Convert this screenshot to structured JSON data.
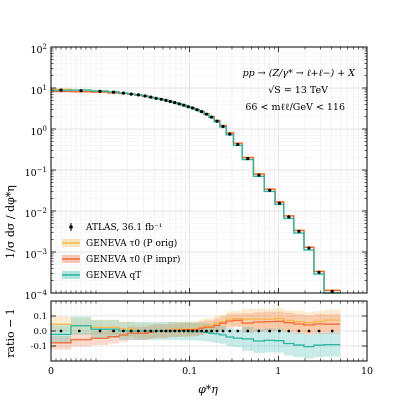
{
  "chart_data": [
    {
      "type": "line",
      "panel": "main",
      "ylabel": "1/σ dσ / dφ*η",
      "yscale": "log",
      "ylim": [
        0.0001,
        100
      ],
      "xscale": "symlog",
      "xlim": [
        0,
        10
      ],
      "grid": true,
      "legend": "lower-left",
      "y_tick_labels": [
        "10^-4",
        "10^-3",
        "10^-2",
        "10^-1",
        "10^0",
        "10^1",
        "10^2"
      ],
      "annotations": [
        "pp → (Z/γ* → ℓ+ℓ−) + X",
        "√S = 13 TeV",
        "66 < mℓℓ/GeV < 116"
      ],
      "bin_edges": [
        0,
        0.004,
        0.008,
        0.012,
        0.016,
        0.02,
        0.024,
        0.029,
        0.034,
        0.039,
        0.045,
        0.051,
        0.057,
        0.064,
        0.072,
        0.081,
        0.091,
        0.102,
        0.114,
        0.128,
        0.145,
        0.165,
        0.189,
        0.219,
        0.258,
        0.312,
        0.391,
        0.524,
        0.695,
        0.918,
        1.153,
        1.496,
        1.947,
        2.522,
        3.277,
        5,
        10
      ],
      "series": [
        {
          "name": "ATLAS, 36.1 fb⁻¹",
          "style": "points",
          "color": "#000000",
          "values": [
            8.9,
            8.6,
            8.3,
            7.9,
            7.5,
            7.1,
            6.8,
            6.4,
            6.0,
            5.6,
            5.3,
            5.0,
            4.7,
            4.4,
            4.1,
            3.8,
            3.5,
            3.25,
            2.95,
            2.65,
            2.3,
            1.95,
            1.55,
            1.15,
            0.75,
            0.42,
            0.19,
            0.075,
            0.032,
            0.0155,
            0.0072,
            0.0032,
            0.00125,
            0.00032,
            0.00011
          ]
        },
        {
          "name": "GENEVA τ0 (P orig)",
          "color": "#f5b84a",
          "values": [
            9.3,
            8.9,
            8.5,
            8.1,
            7.6,
            7.2,
            6.8,
            6.4,
            6.0,
            5.6,
            5.3,
            5.0,
            4.75,
            4.45,
            4.15,
            3.85,
            3.55,
            3.3,
            3.0,
            2.72,
            2.38,
            2.02,
            1.63,
            1.22,
            0.81,
            0.455,
            0.205,
            0.081,
            0.0345,
            0.0168,
            0.0077,
            0.0034,
            0.00132,
            0.00034,
            0.000118
          ]
        },
        {
          "name": "GENEVA τ0 (P impr)",
          "color": "#f26b38",
          "values": [
            8.2,
            8.1,
            7.9,
            7.6,
            7.3,
            7.0,
            6.7,
            6.3,
            5.95,
            5.6,
            5.3,
            5.0,
            4.72,
            4.42,
            4.12,
            3.83,
            3.53,
            3.28,
            2.98,
            2.7,
            2.36,
            2.0,
            1.61,
            1.21,
            0.8,
            0.45,
            0.2,
            0.0795,
            0.034,
            0.0165,
            0.0076,
            0.00335,
            0.0013,
            0.000335,
            0.000115
          ]
        },
        {
          "name": "GENEVA qT",
          "color": "#2bb5a3",
          "values": [
            8.7,
            8.9,
            8.4,
            8.0,
            7.5,
            7.1,
            6.8,
            6.4,
            6.0,
            5.6,
            5.3,
            5.0,
            4.7,
            4.4,
            4.1,
            3.8,
            3.5,
            3.24,
            2.94,
            2.64,
            2.28,
            1.92,
            1.52,
            1.12,
            0.72,
            0.4,
            0.18,
            0.07,
            0.03,
            0.0145,
            0.0066,
            0.0029,
            0.00112,
            0.00029,
            0.0001
          ]
        }
      ]
    },
    {
      "type": "line",
      "panel": "ratio",
      "xlabel": "φ*η",
      "ylabel": "ratio − 1",
      "ylim": [
        -0.2,
        0.2
      ],
      "xscale": "symlog",
      "xlim": [
        0,
        10
      ],
      "x_tick_labels": [
        "0",
        "0.1",
        "1",
        "10"
      ],
      "y_tick_labels": [
        "0.1",
        "0.0",
        "-0.1"
      ],
      "grid": true
    }
  ]
}
